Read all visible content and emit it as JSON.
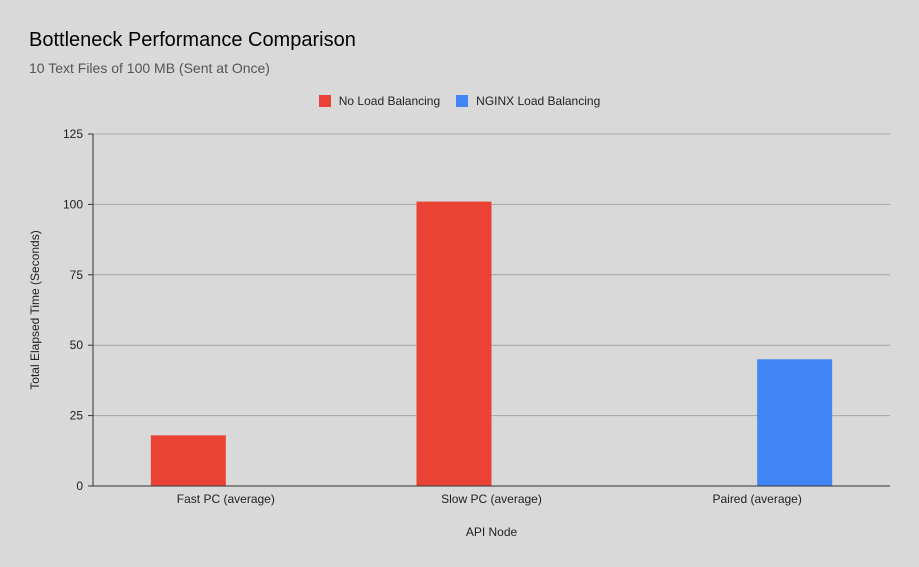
{
  "chart_data": {
    "type": "bar",
    "title": "Bottleneck Performance Comparison",
    "subtitle": "10 Text Files of 100 MB (Sent at Once)",
    "xlabel": "API Node",
    "ylabel": "Total Elapsed Time (Seconds)",
    "categories": [
      "Fast PC (average)",
      "Slow PC (average)",
      "Paired (average)"
    ],
    "series": [
      {
        "name": "No Load Balancing",
        "color": "#ea4335",
        "values": [
          18,
          101,
          null
        ]
      },
      {
        "name": "NGINX Load Balancing",
        "color": "#4285f4",
        "values": [
          null,
          null,
          45
        ]
      }
    ],
    "ylim": [
      0,
      125
    ],
    "yticks": [
      0,
      25,
      50,
      75,
      100,
      125
    ],
    "grid": true,
    "legend": "top-center"
  }
}
